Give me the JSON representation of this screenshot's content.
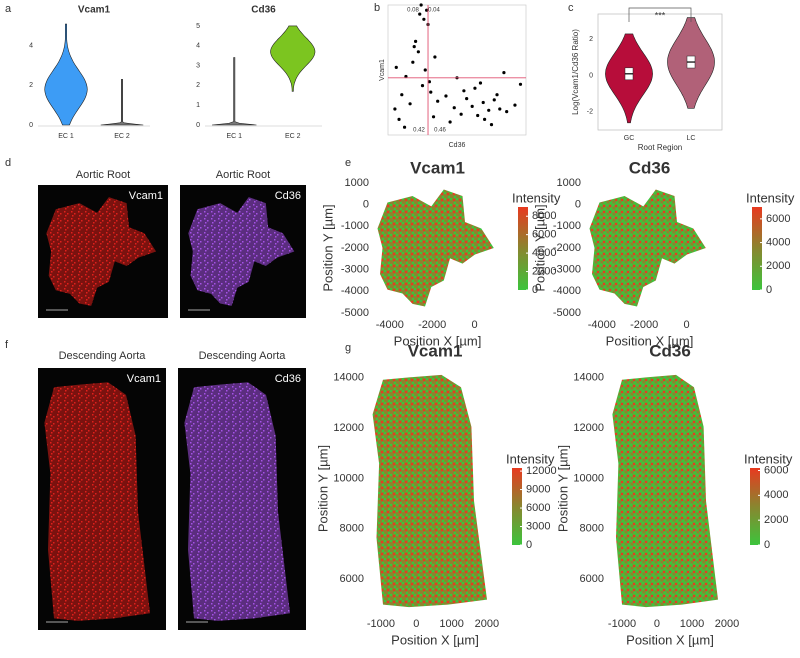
{
  "chart_data": [
    {
      "type": "violin",
      "panel": "a",
      "title": "Vcam1",
      "categories": [
        "EC 1",
        "EC 2"
      ],
      "values": [
        1.8,
        0
      ],
      "min": [
        0,
        0
      ],
      "max": [
        5.1,
        2.3
      ],
      "colors": [
        "#3d9cf5",
        "#777777"
      ],
      "ylim": [
        0,
        5.3
      ],
      "yticks": [
        0,
        2,
        4
      ]
    },
    {
      "type": "violin",
      "title": "Cd36",
      "categories": [
        "EC 1",
        "EC 2"
      ],
      "values": [
        0,
        3.7
      ],
      "min": [
        0,
        1.7
      ],
      "max": [
        3.4,
        5.0
      ],
      "colors": [
        "#777777",
        "#7cc520"
      ],
      "ylim": [
        0,
        5.3
      ],
      "yticks": [
        0,
        1,
        2,
        3,
        4,
        5
      ]
    },
    {
      "type": "scatter",
      "panel": "b",
      "x_label": "Cd36",
      "y_label": "Vcam1",
      "color": "#000000",
      "line_color": "#e05070",
      "x": [
        0.5,
        1.0,
        1.3,
        1.8,
        2.2,
        2.5,
        0.8,
        1.6,
        2.0,
        2.7,
        3.1,
        3.4,
        2.3,
        1.2,
        2.9,
        3.6,
        4.2,
        4.8,
        5.3,
        5.7,
        6.1,
        6.5,
        6.9,
        7.3,
        7.7,
        8.1,
        8.6,
        9.2,
        5.5,
        6.3,
        7.0,
        7.9,
        6.7,
        5.0,
        4.5,
        8.4,
        2.4,
        2.6,
        2.8,
        3.0,
        1.9,
        3.3,
        0.6,
        9.6,
        7.5
      ],
      "y": [
        2.0,
        3.1,
        4.5,
        5.6,
        6.4,
        3.8,
        1.2,
        2.4,
        7.2,
        5.0,
        3.3,
        6.0,
        9.3,
        0.6,
        8.5,
        2.6,
        3.0,
        2.1,
        1.6,
        2.8,
        2.2,
        1.5,
        2.5,
        1.9,
        2.7,
        2.0,
        1.8,
        2.3,
        3.4,
        3.6,
        1.2,
        3.1,
        4.0,
        4.4,
        1.0,
        4.8,
        10.0,
        8.9,
        9.6,
        4.1,
        6.8,
        1.4,
        5.2,
        3.9,
        0.8
      ],
      "xlim": [
        0,
        10
      ],
      "ylim": [
        0,
        10
      ],
      "vline": 2.9,
      "hline": 4.4,
      "annotations": [
        "0.08",
        "0.04",
        "0.42",
        "0.46"
      ]
    },
    {
      "type": "violin",
      "panel": "c",
      "x_label": "Root Region",
      "y_label": "Log(Vcam1/Cd36 Ratio)",
      "categories": [
        "GC",
        "LC"
      ],
      "values": [
        0.1,
        0.75
      ],
      "min": [
        -2.6,
        -1.8
      ],
      "max": [
        2.3,
        3.2
      ],
      "colors": [
        "#b70d3a",
        "#b16178"
      ],
      "ylim": [
        -3,
        3.4
      ],
      "yticks": [
        -2,
        0,
        2
      ],
      "annotation": "***"
    },
    {
      "type": "spatial",
      "panel": "e",
      "title": "Vcam1",
      "x_label": "Position X [µm]",
      "y_label": "Position Y [µm]",
      "xlim": [
        -4700,
        1200
      ],
      "ylim": [
        -5000,
        1000
      ],
      "xticks": [
        -4000,
        -2000,
        0
      ],
      "yticks": [
        -5000,
        -4000,
        -3000,
        -2000,
        -1000,
        0,
        1000
      ],
      "colorbar_title": "Intensity",
      "clim": [
        0,
        9000
      ],
      "cticks": [
        0,
        2000,
        4000,
        6000,
        8000
      ],
      "colors": [
        "#3cc43c",
        "#e83a20"
      ]
    },
    {
      "type": "spatial",
      "title": "Cd36",
      "x_label": "Position X [µm]",
      "y_label": "Position Y [µm]",
      "xlim": [
        -4700,
        1200
      ],
      "ylim": [
        -5000,
        1000
      ],
      "xticks": [
        -4000,
        -2000,
        0
      ],
      "yticks": [
        -5000,
        -4000,
        -3000,
        -2000,
        -1000,
        0,
        1000
      ],
      "colorbar_title": "Intensity",
      "clim": [
        0,
        7000
      ],
      "cticks": [
        0,
        2000,
        4000,
        6000
      ],
      "colors": [
        "#3cc43c",
        "#e83a20"
      ]
    },
    {
      "type": "spatial",
      "panel": "g",
      "title": "Vcam1",
      "x_label": "Position X [µm]",
      "y_label": "Position Y [µm]",
      "xlim": [
        -1310,
        2370
      ],
      "ylim": [
        4700,
        14500
      ],
      "xticks": [
        -1000,
        0,
        1000,
        2000
      ],
      "yticks": [
        6000,
        8000,
        10000,
        12000,
        14000
      ],
      "colorbar_title": "Intensity",
      "clim": [
        0,
        12500
      ],
      "cticks": [
        0,
        3000,
        6000,
        9000,
        12000
      ],
      "colors": [
        "#3cc43c",
        "#e83a20"
      ]
    },
    {
      "type": "spatial",
      "title": "Cd36",
      "x_label": "Position X [µm]",
      "y_label": "Position Y [µm]",
      "xlim": [
        -1343,
        2086
      ],
      "ylim": [
        4700,
        14500
      ],
      "xticks": [
        -1000,
        0,
        1000,
        2000
      ],
      "yticks": [
        6000,
        8000,
        10000,
        12000,
        14000
      ],
      "colorbar_title": "Intensity",
      "clim": [
        0,
        6200
      ],
      "cticks": [
        0,
        2000,
        4000,
        6000
      ],
      "colors": [
        "#3cc43c",
        "#e83a20"
      ]
    }
  ],
  "images": [
    {
      "panel": "d",
      "title": "Aortic Root",
      "label": "Vcam1",
      "color": "#e0201c"
    },
    {
      "title": "Aortic Root",
      "label": "Cd36",
      "color": "#a552e6"
    },
    {
      "panel": "f",
      "title": "Descending Aorta",
      "label": "Vcam1",
      "color": "#e0201c"
    },
    {
      "title": "Descending Aorta",
      "label": "Cd36",
      "color": "#a552e6"
    }
  ]
}
